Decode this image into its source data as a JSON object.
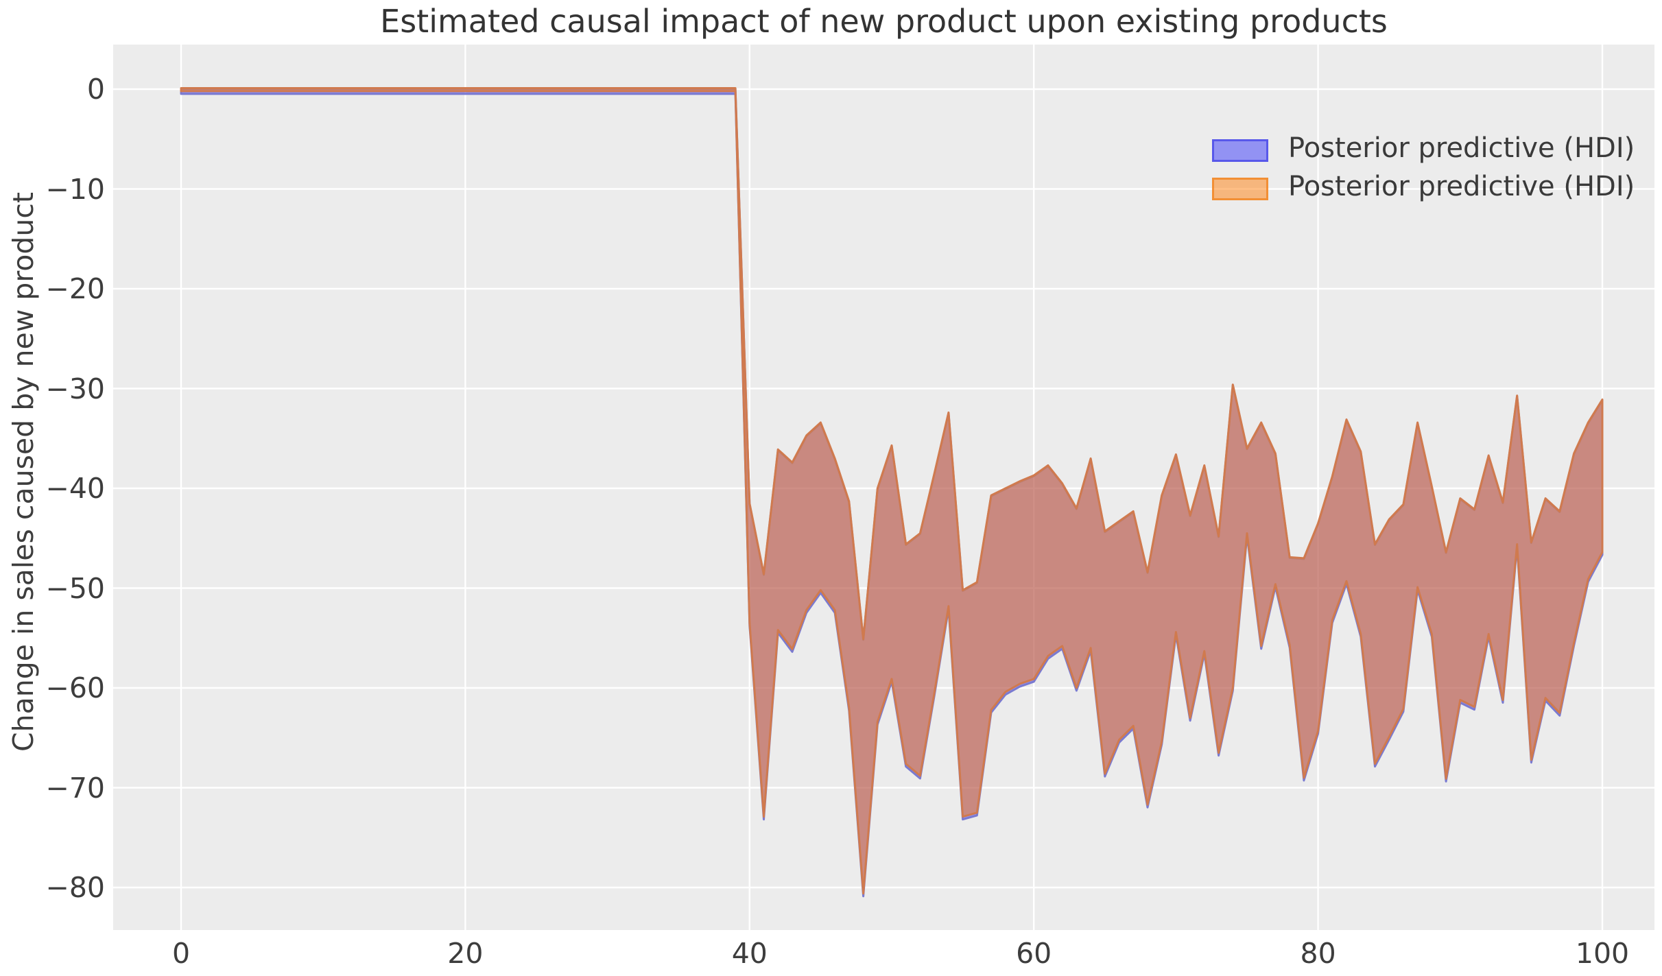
{
  "title": "Estimated causal impact of new product upon existing products",
  "axes": {
    "ylabel": "Change in sales caused by new product",
    "x_ticks": [
      {
        "v": 0,
        "label": "0"
      },
      {
        "v": 20,
        "label": "20"
      },
      {
        "v": 40,
        "label": "40"
      },
      {
        "v": 60,
        "label": "60"
      },
      {
        "v": 80,
        "label": "80"
      },
      {
        "v": 100,
        "label": "100"
      }
    ],
    "y_ticks": [
      {
        "v": 0,
        "label": "0"
      },
      {
        "v": -10,
        "label": "−10"
      },
      {
        "v": -20,
        "label": "−20"
      },
      {
        "v": -30,
        "label": "−30"
      },
      {
        "v": -40,
        "label": "−40"
      },
      {
        "v": -50,
        "label": "−50"
      },
      {
        "v": -60,
        "label": "−60"
      },
      {
        "v": -70,
        "label": "−70"
      },
      {
        "v": -80,
        "label": "−80"
      }
    ]
  },
  "legend": {
    "position": "upper right",
    "items": [
      {
        "label": "Posterior predictive (HDI)",
        "swatch": "blue-hdi-swatch"
      },
      {
        "label": "Posterior predictive (HDI)",
        "swatch": "orange-hdi-swatch"
      }
    ]
  },
  "colors": {
    "plot_background": "#ececec",
    "gridline": "#ffffff",
    "hdi_blue_fill": "#0000ff",
    "hdi_blue_alpha": 0.38,
    "hdi_blue_edge": "#7a7ad0",
    "hdi_orange_fill": "#ff7f0e",
    "hdi_orange_alpha": 0.5,
    "hdi_orange_edge": "#d07a4e",
    "band_overlap_appearance": "#c68681",
    "text": "#3d3d3d",
    "title_text": "#333333"
  },
  "chart_data": {
    "type": "area",
    "title": "Estimated causal impact of new product upon existing products",
    "xlabel": "",
    "ylabel": "Change in sales caused by new product",
    "xlim": [
      -4.8,
      103.7
    ],
    "ylim": [
      -84.3,
      4.5
    ],
    "grid": true,
    "legend_position": "upper right",
    "description": "Two overlapping HDI bands (blue and orange posterior predictive intervals) that coincide almost exactly; impact is ~0 before x=40, then an uncertainty band roughly between -30 and -81 after the intervention at x=40.",
    "pre_period": {
      "x": [
        0,
        39
      ],
      "value": 0,
      "upper": [
        0.1,
        0.1
      ],
      "lower": [
        -0.2,
        -0.2
      ]
    },
    "post_period": {
      "x_start": 40,
      "x_step": 1,
      "x_end": 100,
      "upper": [
        -41.5,
        -48.6,
        -36.1,
        -37.4,
        -34.7,
        -33.4,
        -37.0,
        -41.3,
        -55.1,
        -40.0,
        -35.7,
        -45.6,
        -44.5,
        -38.5,
        -32.4,
        -50.2,
        -49.4,
        -40.7,
        -40.0,
        -39.3,
        -38.7,
        -37.7,
        -39.5,
        -42.0,
        -37.0,
        -44.3,
        -43.3,
        -42.3,
        -48.4,
        -40.7,
        -36.6,
        -42.7,
        -37.7,
        -44.8,
        -29.6,
        -36.0,
        -33.4,
        -36.5,
        -46.9,
        -47.0,
        -43.5,
        -38.8,
        -33.1,
        -36.3,
        -45.6,
        -43.1,
        -41.6,
        -33.4,
        -39.8,
        -46.4,
        -41.0,
        -42.1,
        -36.7,
        -41.4,
        -30.7,
        -45.4,
        -41.0,
        -42.3,
        -36.5,
        -33.4,
        -31.1
      ],
      "lower": [
        -53.5,
        -72.9,
        -54.2,
        -56.1,
        -52.2,
        -50.2,
        -52.2,
        -62.0,
        -80.6,
        -63.4,
        -59.1,
        -67.6,
        -68.8,
        -60.5,
        -51.8,
        -72.9,
        -72.5,
        -62.2,
        -60.4,
        -59.6,
        -59.1,
        -56.8,
        -55.8,
        -60.0,
        -56.0,
        -68.6,
        -65.2,
        -63.8,
        -71.7,
        -65.4,
        -54.4,
        -63.0,
        -56.3,
        -66.5,
        -60.0,
        -44.5,
        -55.8,
        -49.6,
        -55.7,
        -69.0,
        -64.3,
        -53.2,
        -49.3,
        -54.6,
        -67.6,
        -64.9,
        -62.1,
        -49.9,
        -54.6,
        -69.1,
        -61.2,
        -61.9,
        -54.6,
        -61.2,
        -45.6,
        -67.2,
        -61.0,
        -62.5,
        -55.5,
        -49.1,
        -46.4
      ]
    },
    "series": [
      {
        "name": "Posterior predictive (HDI)",
        "color": "#0000ff",
        "alpha": 0.38
      },
      {
        "name": "Posterior predictive (HDI)",
        "color": "#ff7f0e",
        "alpha": 0.5
      }
    ]
  }
}
